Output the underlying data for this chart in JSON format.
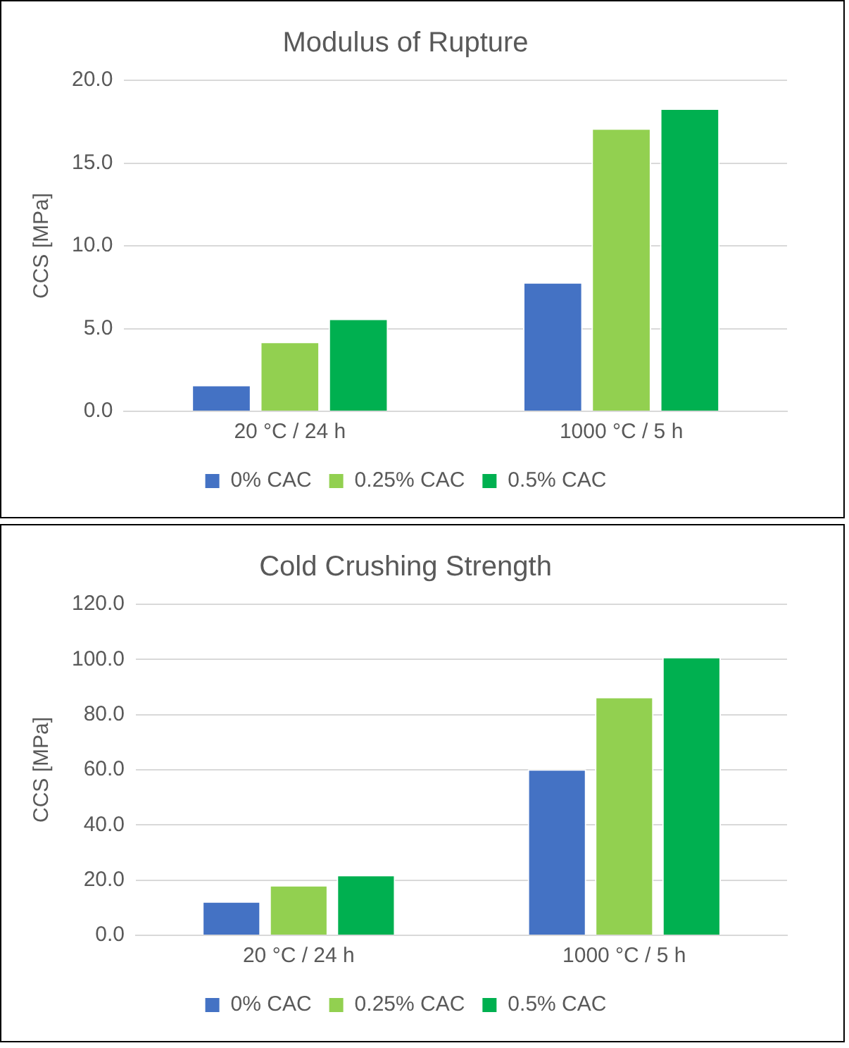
{
  "chart_data": [
    {
      "type": "bar",
      "title": "Modulus of Rupture",
      "ylabel": "CCS [MPa]",
      "categories": [
        "20 °C / 24 h",
        "1000 °C / 5 h"
      ],
      "series": [
        {
          "name": "0% CAC",
          "color": "#4472c4",
          "values": [
            1.6,
            7.8
          ]
        },
        {
          "name": "0.25% CAC",
          "color": "#92d050",
          "values": [
            4.2,
            17.1
          ]
        },
        {
          "name": "0.5% CAC",
          "color": "#00b050",
          "values": [
            5.6,
            18.3
          ]
        }
      ],
      "ylim": [
        0,
        20
      ],
      "yticks": [
        {
          "value": 0,
          "label": "0.0"
        },
        {
          "value": 5,
          "label": "5.0"
        },
        {
          "value": 10,
          "label": "10.0"
        },
        {
          "value": 15,
          "label": "15.0"
        },
        {
          "value": 20,
          "label": "20.0"
        }
      ],
      "grid": "y",
      "legend": "bottom"
    },
    {
      "type": "bar",
      "title": "Cold Crushing Strength",
      "ylabel": "CCS [MPa]",
      "categories": [
        "20 °C / 24 h",
        "1000 °C / 5 h"
      ],
      "series": [
        {
          "name": "0% CAC",
          "color": "#4472c4",
          "values": [
            12.3,
            60.2
          ]
        },
        {
          "name": "0.25% CAC",
          "color": "#92d050",
          "values": [
            18.2,
            86.4
          ]
        },
        {
          "name": "0.5% CAC",
          "color": "#00b050",
          "values": [
            21.9,
            100.9
          ]
        }
      ],
      "ylim": [
        0,
        120
      ],
      "yticks": [
        {
          "value": 0,
          "label": "0.0"
        },
        {
          "value": 20,
          "label": "20.0"
        },
        {
          "value": 40,
          "label": "40.0"
        },
        {
          "value": 60,
          "label": "60.0"
        },
        {
          "value": 80,
          "label": "80.0"
        },
        {
          "value": 100,
          "label": "100.0"
        },
        {
          "value": 120,
          "label": "120.0"
        }
      ],
      "grid": "y",
      "legend": "bottom"
    }
  ]
}
